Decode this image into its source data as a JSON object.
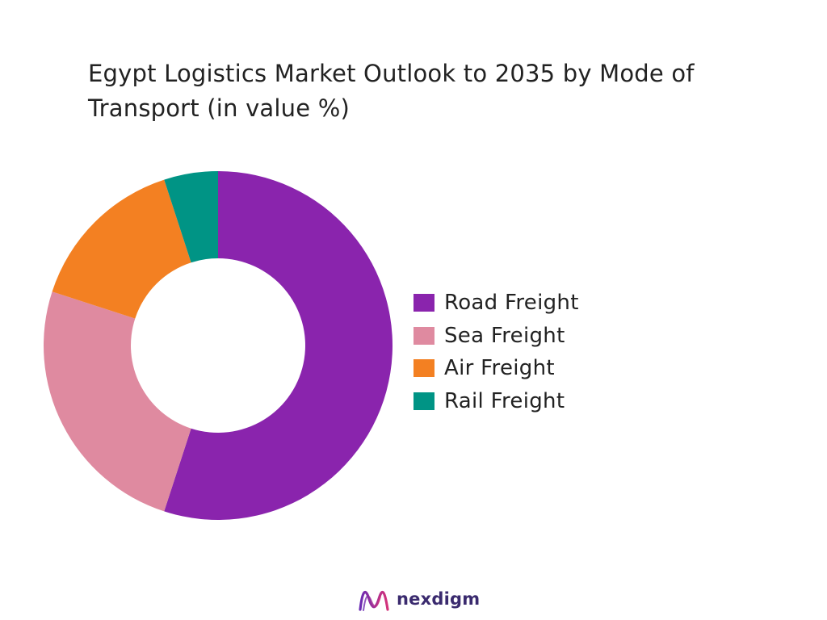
{
  "chart_data": {
    "type": "pie",
    "title": "Egypt Logistics Market Outlook to 2035 by Mode of Transport (in value %)",
    "categories": [
      "Road Freight",
      "Sea Freight",
      "Air Freight",
      "Rail Freight"
    ],
    "values": [
      55,
      25,
      15,
      5
    ],
    "colors": [
      "#8a24ad",
      "#df8aa0",
      "#f38022",
      "#009485"
    ],
    "donut": true,
    "legend_position": "right"
  },
  "brand": {
    "name": "nexdigm",
    "logo_icon": "nexdigm-wave-logo-icon",
    "logo_colors": [
      "#6a2bb3",
      "#d5337a"
    ]
  }
}
